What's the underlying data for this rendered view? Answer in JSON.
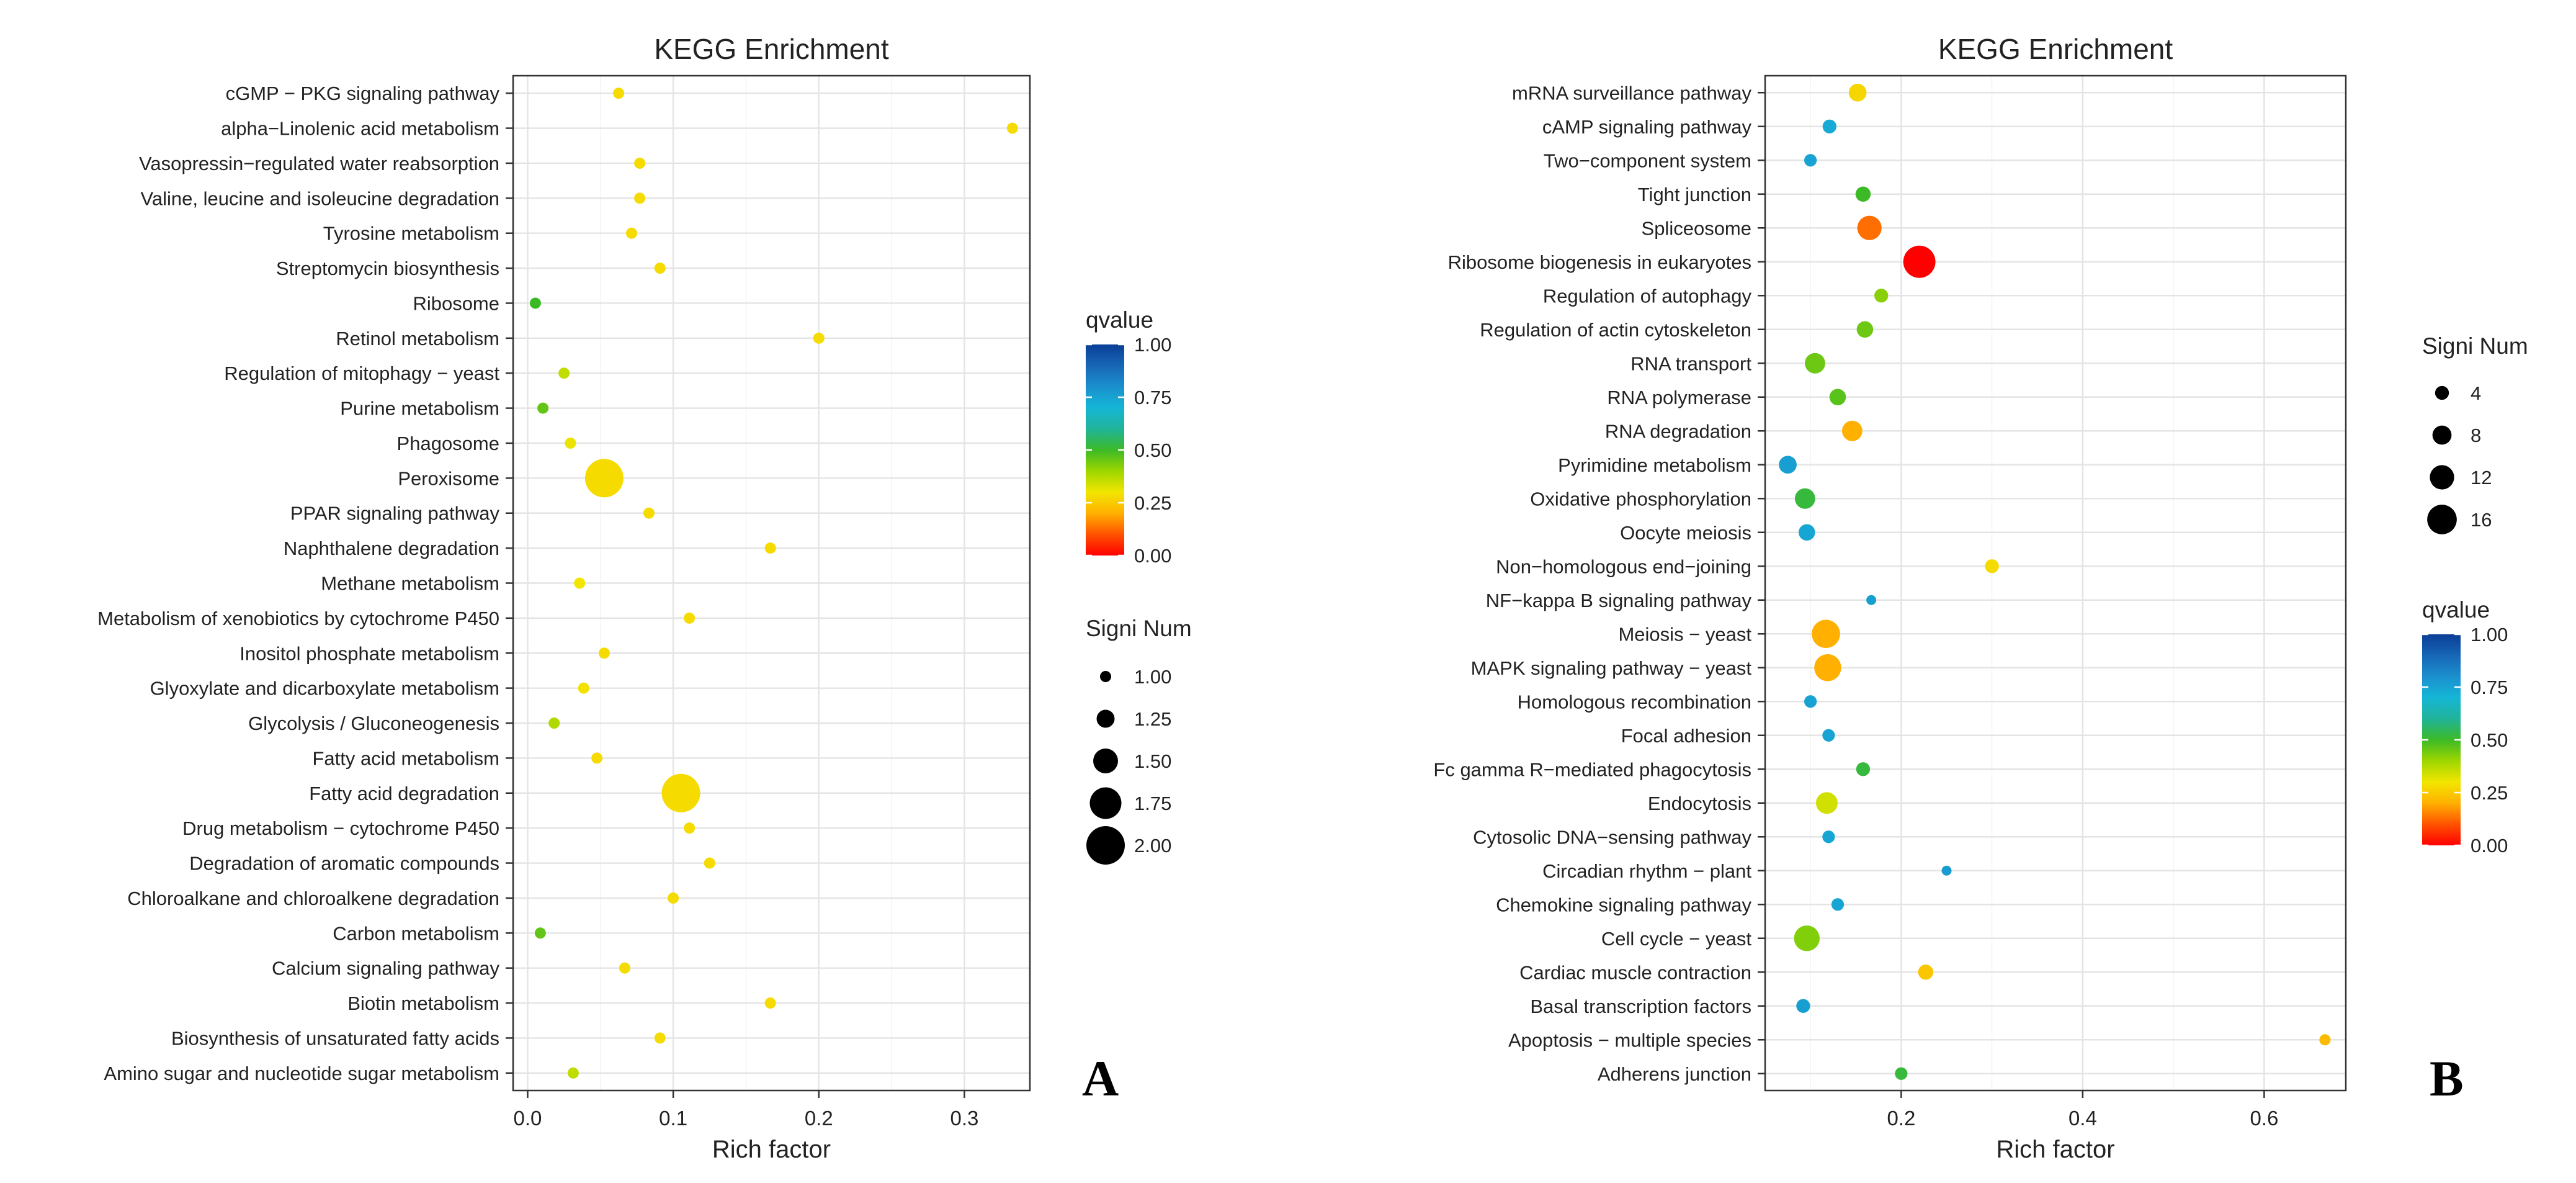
{
  "chart_data": [
    {
      "panel": "A",
      "type": "scatter",
      "title": "KEGG Enrichment",
      "xlabel": "Rich factor",
      "ylabel": "",
      "xlim": [
        -0.01,
        0.345
      ],
      "x_ticks": [
        0.0,
        0.1,
        0.2,
        0.3
      ],
      "x_tick_labels": [
        "0.0",
        "0.1",
        "0.2",
        "0.3"
      ],
      "grid": true,
      "legend_order": [
        "qvalue",
        "size"
      ],
      "color_legend": {
        "title": "qvalue",
        "min": 0,
        "max": 1,
        "ticks": [
          1.0,
          0.75,
          0.5,
          0.25,
          0.0
        ],
        "tick_labels": [
          "1.00",
          "0.75",
          "0.50",
          "0.25",
          "0.00"
        ]
      },
      "size_legend": {
        "title": "Signi Num",
        "min": 1,
        "max": 2,
        "values": [
          1.0,
          1.25,
          1.5,
          1.75,
          2.0
        ],
        "labels": [
          "1.00",
          "1.25",
          "1.50",
          "1.75",
          "2.00"
        ]
      },
      "points": [
        {
          "term": "cGMP − PKG signaling pathway",
          "rich": 0.0625,
          "q": 0.28,
          "n": 1
        },
        {
          "term": "alpha−Linolenic acid metabolism",
          "rich": 0.333,
          "q": 0.28,
          "n": 1
        },
        {
          "term": "Vasopressin−regulated water reabsorption",
          "rich": 0.077,
          "q": 0.28,
          "n": 1
        },
        {
          "term": "Valine, leucine and isoleucine degradation",
          "rich": 0.077,
          "q": 0.28,
          "n": 1
        },
        {
          "term": "Tyrosine metabolism",
          "rich": 0.0714,
          "q": 0.28,
          "n": 1
        },
        {
          "term": "Streptomycin biosynthesis",
          "rich": 0.0909,
          "q": 0.28,
          "n": 1
        },
        {
          "term": "Ribosome",
          "rich": 0.0053,
          "q": 0.5,
          "n": 1
        },
        {
          "term": "Retinol metabolism",
          "rich": 0.2,
          "q": 0.28,
          "n": 1
        },
        {
          "term": "Regulation of mitophagy − yeast",
          "rich": 0.025,
          "q": 0.36,
          "n": 1
        },
        {
          "term": "Purine metabolism",
          "rich": 0.0105,
          "q": 0.46,
          "n": 1
        },
        {
          "term": "Phagosome",
          "rich": 0.0294,
          "q": 0.31,
          "n": 1
        },
        {
          "term": "Peroxisome",
          "rich": 0.0526,
          "q": 0.28,
          "n": 2
        },
        {
          "term": "PPAR signaling pathway",
          "rich": 0.0833,
          "q": 0.28,
          "n": 1
        },
        {
          "term": "Naphthalene degradation",
          "rich": 0.1667,
          "q": 0.28,
          "n": 1
        },
        {
          "term": "Methane metabolism",
          "rich": 0.0357,
          "q": 0.3,
          "n": 1
        },
        {
          "term": "Metabolism of xenobiotics by cytochrome P450",
          "rich": 0.1111,
          "q": 0.28,
          "n": 1
        },
        {
          "term": "Inositol phosphate metabolism",
          "rich": 0.0526,
          "q": 0.28,
          "n": 1
        },
        {
          "term": "Glyoxylate and dicarboxylate metabolism",
          "rich": 0.0385,
          "q": 0.29,
          "n": 1
        },
        {
          "term": "Glycolysis / Gluconeogenesis",
          "rich": 0.0182,
          "q": 0.38,
          "n": 1
        },
        {
          "term": "Fatty acid metabolism",
          "rich": 0.0476,
          "q": 0.28,
          "n": 1
        },
        {
          "term": "Fatty acid degradation",
          "rich": 0.1053,
          "q": 0.28,
          "n": 2
        },
        {
          "term": "Drug metabolism − cytochrome P450",
          "rich": 0.1111,
          "q": 0.28,
          "n": 1
        },
        {
          "term": "Degradation of aromatic compounds",
          "rich": 0.125,
          "q": 0.28,
          "n": 1
        },
        {
          "term": "Chloroalkane and chloroalkene degradation",
          "rich": 0.1,
          "q": 0.28,
          "n": 1
        },
        {
          "term": "Carbon metabolism",
          "rich": 0.0087,
          "q": 0.46,
          "n": 1
        },
        {
          "term": "Calcium signaling pathway",
          "rich": 0.0667,
          "q": 0.28,
          "n": 1
        },
        {
          "term": "Biotin metabolism",
          "rich": 0.1667,
          "q": 0.28,
          "n": 1
        },
        {
          "term": "Biosynthesis of unsaturated fatty acids",
          "rich": 0.0909,
          "q": 0.28,
          "n": 1
        },
        {
          "term": "Amino sugar and nucleotide sugar metabolism",
          "rich": 0.0313,
          "q": 0.36,
          "n": 1
        }
      ]
    },
    {
      "panel": "B",
      "type": "scatter",
      "title": "KEGG Enrichment",
      "xlabel": "Rich factor",
      "ylabel": "",
      "xlim": [
        0.05,
        0.69
      ],
      "x_ticks": [
        0.2,
        0.4,
        0.6
      ],
      "x_tick_labels": [
        "0.2",
        "0.4",
        "0.6"
      ],
      "grid": true,
      "legend_order": [
        "size",
        "qvalue"
      ],
      "color_legend": {
        "title": "qvalue",
        "min": 0,
        "max": 1,
        "ticks": [
          1.0,
          0.75,
          0.5,
          0.25,
          0.0
        ],
        "tick_labels": [
          "1.00",
          "0.75",
          "0.50",
          "0.25",
          "0.00"
        ]
      },
      "size_legend": {
        "title": "Signi Num",
        "min": 1,
        "max": 19,
        "values": [
          4,
          8,
          12,
          16
        ],
        "labels": [
          "4",
          "8",
          "12",
          "16"
        ]
      },
      "points": [
        {
          "term": "mRNA surveillance pathway",
          "rich": 0.152,
          "q": 0.27,
          "n": 7
        },
        {
          "term": "cAMP signaling pathway",
          "rich": 0.121,
          "q": 0.73,
          "n": 4
        },
        {
          "term": "Two−component system",
          "rich": 0.1,
          "q": 0.75,
          "n": 3
        },
        {
          "term": "Tight junction",
          "rich": 0.158,
          "q": 0.5,
          "n": 5
        },
        {
          "term": "Spliceosome",
          "rich": 0.165,
          "q": 0.13,
          "n": 12
        },
        {
          "term": "Ribosome biogenesis in eukaryotes",
          "rich": 0.22,
          "q": 0.0,
          "n": 18
        },
        {
          "term": "Regulation of autophagy",
          "rich": 0.178,
          "q": 0.42,
          "n": 4
        },
        {
          "term": "Regulation of actin cytoskeleton",
          "rich": 0.16,
          "q": 0.45,
          "n": 6
        },
        {
          "term": "RNA transport",
          "rich": 0.105,
          "q": 0.45,
          "n": 9
        },
        {
          "term": "RNA polymerase",
          "rich": 0.13,
          "q": 0.47,
          "n": 6
        },
        {
          "term": "RNA degradation",
          "rich": 0.146,
          "q": 0.2,
          "n": 9
        },
        {
          "term": "Pyrimidine metabolism",
          "rich": 0.075,
          "q": 0.76,
          "n": 7
        },
        {
          "term": "Oxidative phosphorylation",
          "rich": 0.094,
          "q": 0.52,
          "n": 9
        },
        {
          "term": "Oocyte meiosis",
          "rich": 0.096,
          "q": 0.74,
          "n": 6
        },
        {
          "term": "Non−homologous end−joining",
          "rich": 0.3,
          "q": 0.28,
          "n": 4
        },
        {
          "term": "NF−kappa B signaling pathway",
          "rich": 0.167,
          "q": 0.76,
          "n": 1
        },
        {
          "term": "Meiosis − yeast",
          "rich": 0.117,
          "q": 0.2,
          "n": 15
        },
        {
          "term": "MAPK signaling pathway − yeast",
          "rich": 0.119,
          "q": 0.2,
          "n": 14
        },
        {
          "term": "Homologous recombination",
          "rich": 0.1,
          "q": 0.75,
          "n": 3
        },
        {
          "term": "Focal adhesion",
          "rich": 0.12,
          "q": 0.75,
          "n": 3
        },
        {
          "term": "Fc gamma R−mediated phagocytosis",
          "rich": 0.158,
          "q": 0.52,
          "n": 4
        },
        {
          "term": "Endocytosis",
          "rich": 0.118,
          "q": 0.34,
          "n": 10
        },
        {
          "term": "Cytosolic DNA−sensing pathway",
          "rich": 0.12,
          "q": 0.74,
          "n": 3
        },
        {
          "term": "Circadian rhythm − plant",
          "rich": 0.25,
          "q": 0.77,
          "n": 1
        },
        {
          "term": "Chemokine signaling pathway",
          "rich": 0.13,
          "q": 0.74,
          "n": 3
        },
        {
          "term": "Cell cycle − yeast",
          "rich": 0.096,
          "q": 0.43,
          "n": 13
        },
        {
          "term": "Cardiac muscle contraction",
          "rich": 0.227,
          "q": 0.24,
          "n": 5
        },
        {
          "term": "Basal transcription factors",
          "rich": 0.092,
          "q": 0.76,
          "n": 4
        },
        {
          "term": "Apoptosis − multiple species",
          "rich": 0.667,
          "q": 0.22,
          "n": 2
        },
        {
          "term": "Adherens junction",
          "rich": 0.2,
          "q": 0.52,
          "n": 3
        }
      ]
    }
  ]
}
